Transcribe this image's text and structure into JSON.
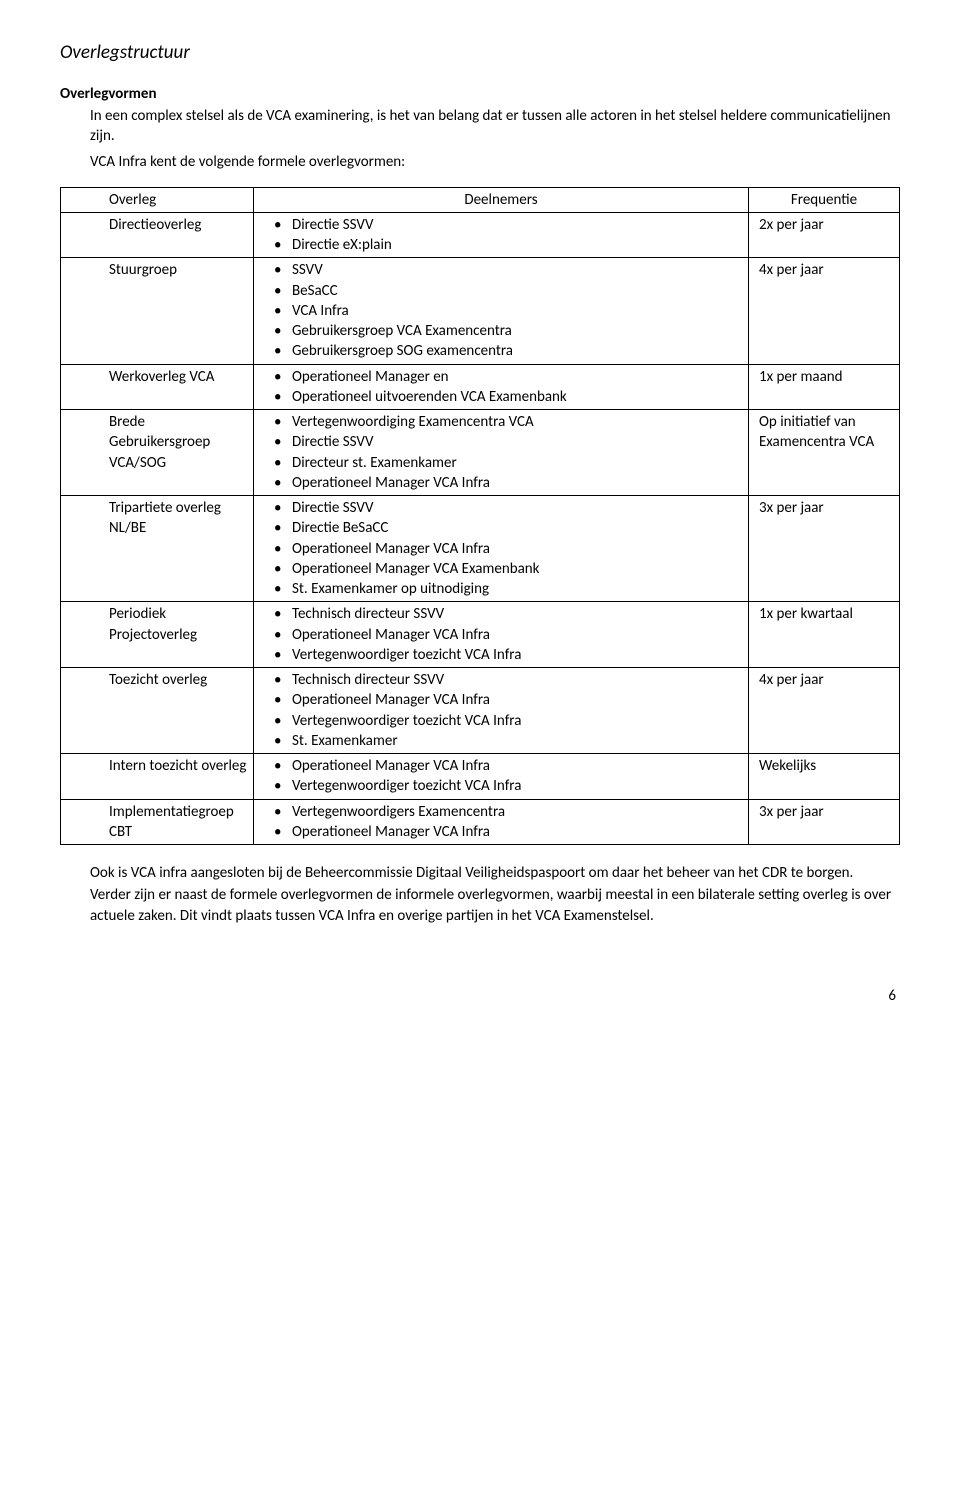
{
  "page_title": "Overlegstructuur",
  "sub_heading": "Overlegvormen",
  "intro_lines": [
    "In een complex stelsel als de VCA examinering, is het van belang dat er tussen alle actoren in het stelsel heldere communicatielijnen zijn.",
    "VCA Infra kent de volgende formele overlegvormen:"
  ],
  "table": {
    "headers": {
      "c1": "Overleg",
      "c2": "Deelnemers",
      "c3": "Frequentie"
    },
    "rows": [
      {
        "overleg": "Directieoverleg",
        "deelnemers": [
          "Directie SSVV",
          "Directie eX:plain"
        ],
        "freq": "2x per jaar"
      },
      {
        "overleg": "Stuurgroep",
        "deelnemers": [
          "SSVV",
          "BeSaCC",
          "VCA Infra",
          "Gebruikersgroep VCA Examencentra",
          "Gebruikersgroep SOG examencentra"
        ],
        "freq": "4x per jaar"
      },
      {
        "overleg": "Werkoverleg VCA",
        "deelnemers": [
          "Operationeel Manager en",
          "Operationeel uitvoerenden VCA Examenbank"
        ],
        "freq": "1x per maand"
      },
      {
        "overleg": "Brede Gebruikersgroep VCA/SOG",
        "deelnemers": [
          "Vertegenwoordiging Examencentra VCA",
          "Directie SSVV",
          "Directeur st. Examenkamer",
          "Operationeel Manager VCA Infra"
        ],
        "freq": "Op initiatief van Examencentra VCA"
      },
      {
        "overleg": "Tripartiete overleg NL/BE",
        "deelnemers": [
          "Directie SSVV",
          "Directie BeSaCC",
          "Operationeel Manager VCA Infra",
          "Operationeel Manager VCA Examenbank",
          "St. Examenkamer op uitnodiging"
        ],
        "freq": "3x per jaar"
      },
      {
        "overleg": "Periodiek Projectoverleg",
        "deelnemers": [
          "Technisch directeur SSVV",
          "Operationeel Manager VCA Infra",
          "Vertegenwoordiger toezicht VCA Infra"
        ],
        "freq": "1x per kwartaal"
      },
      {
        "overleg": "Toezicht overleg",
        "deelnemers": [
          "Technisch directeur SSVV",
          "Operationeel Manager VCA Infra",
          "Vertegenwoordiger toezicht VCA Infra",
          "St. Examenkamer"
        ],
        "freq": "4x per jaar"
      },
      {
        "overleg": "Intern toezicht overleg",
        "deelnemers": [
          "Operationeel Manager VCA Infra",
          "Vertegenwoordiger toezicht VCA Infra"
        ],
        "freq": "Wekelijks"
      },
      {
        "overleg": "Implementatiegroep CBT",
        "deelnemers": [
          "Vertegenwoordigers Examencentra",
          "Operationeel Manager VCA Infra"
        ],
        "freq": "3x per jaar"
      }
    ]
  },
  "outro_lines": [
    "Ook is VCA infra aangesloten bij de Beheercommissie Digitaal Veiligheidspaspoort om daar het beheer van het CDR te borgen.",
    "Verder zijn er naast de formele overlegvormen de informele overlegvormen, waarbij meestal in een bilaterale setting overleg is over actuele zaken. Dit vindt plaats tussen VCA Infra en overige partijen in het VCA Examenstelsel."
  ],
  "page_number": "6"
}
